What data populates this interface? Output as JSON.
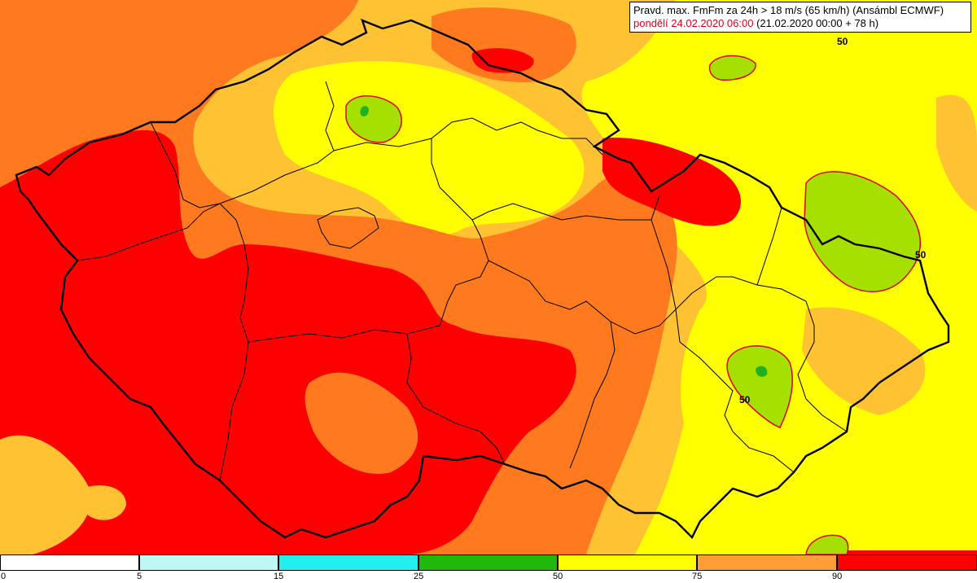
{
  "title": {
    "line1": "Pravd. max. FmFm za 24h > 18 m/s (65 km/h) (Ansámbl ECMWF)",
    "line2_date": "pondělí 24.02.2020 06:00",
    "line2_run": "(21.02.2020 00:00 + 78 h)"
  },
  "contour_labels": [
    "50",
    "50",
    "50"
  ],
  "legend": {
    "bins": [
      {
        "from": "0",
        "to": "5",
        "color": "#ffffff"
      },
      {
        "from": "5",
        "to": "15",
        "color": "#bff7f7"
      },
      {
        "from": "15",
        "to": "25",
        "color": "#22eeee"
      },
      {
        "from": "25",
        "to": "50",
        "color": "#21b80c"
      },
      {
        "from": "50",
        "to": "75",
        "color": "#ffff00"
      },
      {
        "from": "75",
        "to": "90",
        "color": "#ff9e37"
      },
      {
        "from": "90",
        "to": "",
        "color": "#ff0000"
      }
    ],
    "ticks": [
      "0",
      "5",
      "15",
      "25",
      "50",
      "75",
      "90"
    ]
  },
  "colors": {
    "yellow": "#ffff00",
    "light_orange": "#ffc233",
    "orange": "#ff7a1f",
    "red": "#ff0000",
    "green": "#a6e000",
    "deep_green": "#22b020",
    "contour_line": "#e0001b",
    "border_line": "#000000"
  }
}
